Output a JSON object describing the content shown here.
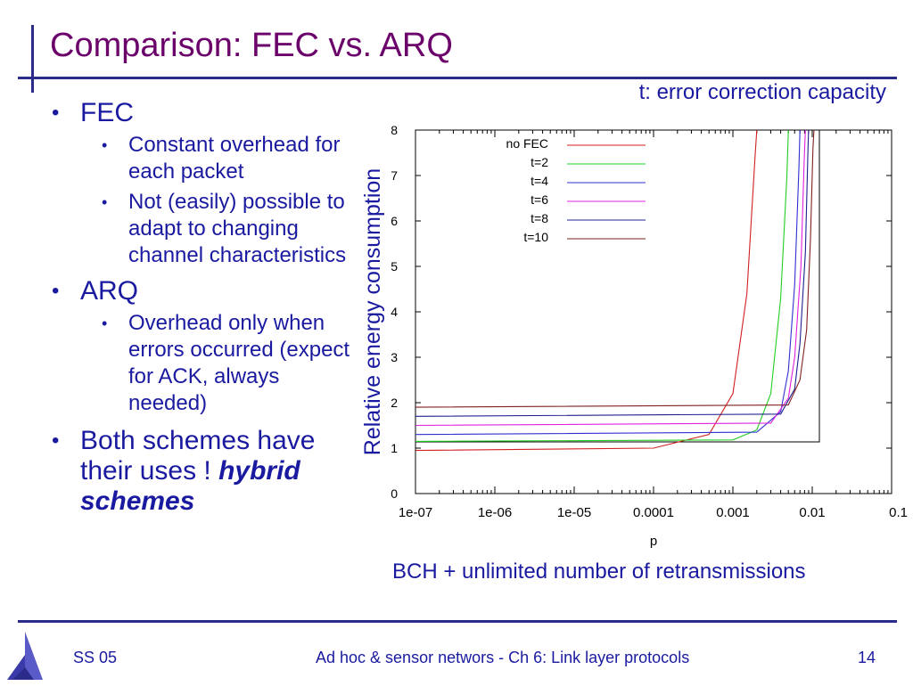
{
  "slide": {
    "title": "Comparison: FEC vs. ARQ",
    "note": "t: error correction capacity",
    "caption": "BCH + unlimited number of retransmissions"
  },
  "bullets": {
    "fec": {
      "label": "FEC",
      "subs": [
        "Constant overhead for each packet",
        "Not (easily) possible to adapt to changing channel characteristics"
      ]
    },
    "arq": {
      "label": "ARQ",
      "subs": [
        "Overhead only when errors occurred (expect for ACK, always needed)"
      ]
    },
    "both": {
      "text": "Both schemes have their uses ! ",
      "emph": "hybrid schemes"
    }
  },
  "footer": {
    "left": "SS 05",
    "center": "Ad hoc & sensor networs - Ch 6: Link layer protocols",
    "page": "14"
  },
  "chart_data": {
    "type": "line",
    "xlabel": "p",
    "ylabel": "Relative energy consumption",
    "xscale": "log",
    "xlim": [
      1e-07,
      0.1
    ],
    "ylim": [
      0,
      8
    ],
    "xticks": [
      "1e-07",
      "1e-06",
      "1e-05",
      "0.0001",
      "0.001",
      "0.01",
      "0.1"
    ],
    "yticks": [
      "0",
      "1",
      "2",
      "3",
      "4",
      "5",
      "6",
      "7",
      "8"
    ],
    "legend_position": "top-right",
    "series": [
      {
        "name": "no FEC",
        "color": "#d02020",
        "baseline": 0.95,
        "x": [
          1e-07,
          0.0001,
          0.0005,
          0.001,
          0.0015,
          0.0019,
          0.002
        ],
        "y": [
          0.95,
          1.0,
          1.3,
          2.2,
          4.4,
          7.4,
          8.0
        ]
      },
      {
        "name": "t=2",
        "color": "#20d020",
        "baseline": 1.15,
        "x": [
          1e-07,
          0.001,
          0.002,
          0.003,
          0.004,
          0.0048,
          0.005
        ],
        "y": [
          1.15,
          1.18,
          1.4,
          2.2,
          4.3,
          7.0,
          8.0
        ]
      },
      {
        "name": "t=4",
        "color": "#3030d0",
        "baseline": 1.3,
        "x": [
          1e-07,
          0.002,
          0.004,
          0.005,
          0.006,
          0.0068,
          0.007
        ],
        "y": [
          1.3,
          1.35,
          1.8,
          2.7,
          4.6,
          7.2,
          8.0
        ]
      },
      {
        "name": "t=6",
        "color": "#e020e0",
        "baseline": 1.5,
        "x": [
          1e-07,
          0.003,
          0.005,
          0.006,
          0.0072,
          0.0079,
          0.0082
        ],
        "y": [
          1.5,
          1.55,
          2.1,
          3.0,
          5.0,
          7.3,
          8.0
        ]
      },
      {
        "name": "t=8",
        "color": "#202090",
        "baseline": 1.7,
        "x": [
          1e-07,
          0.004,
          0.006,
          0.007,
          0.0082,
          0.0088,
          0.009
        ],
        "y": [
          1.7,
          1.75,
          2.3,
          3.3,
          5.3,
          7.5,
          8.0
        ]
      },
      {
        "name": "t=10",
        "color": "#802020",
        "baseline": 1.9,
        "x": [
          1e-07,
          0.005,
          0.007,
          0.0085,
          0.0095,
          0.0102,
          0.0105
        ],
        "y": [
          1.9,
          1.95,
          2.5,
          3.6,
          5.6,
          7.6,
          8.0
        ]
      }
    ]
  }
}
